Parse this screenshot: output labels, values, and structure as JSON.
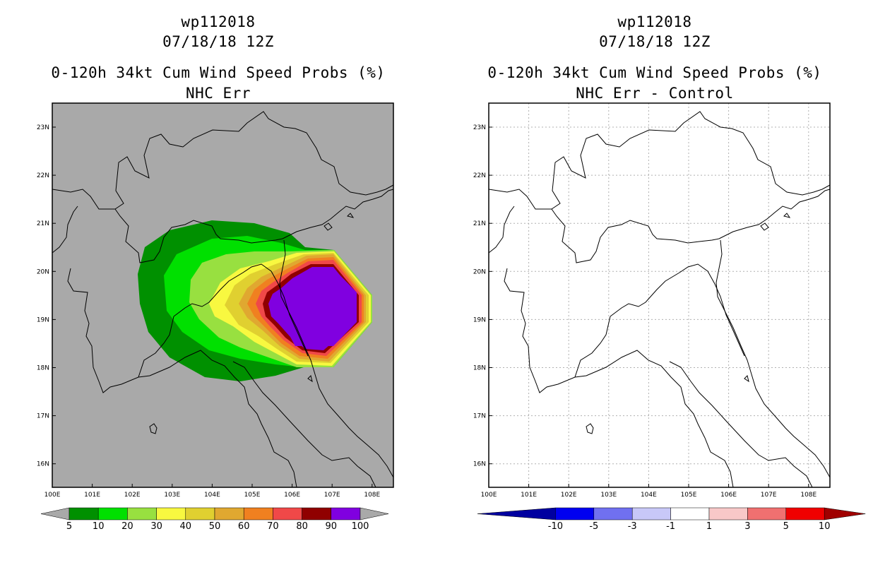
{
  "panels": [
    {
      "storm_id": "wp112018",
      "datetime": "07/18/18 12Z",
      "product": "0-120h 34kt Cum Wind Speed Probs (%)",
      "subtitle": "NHC Err",
      "background": "#a9a9a9",
      "colorbar": {
        "colors": [
          "#009000",
          "#00e000",
          "#98e040",
          "#f8f840",
          "#e0d030",
          "#e0a830",
          "#f08020",
          "#f04848",
          "#900000",
          "#8000e0"
        ],
        "labels": [
          "5",
          "10",
          "20",
          "30",
          "40",
          "50",
          "60",
          "70",
          "80",
          "90",
          "100"
        ]
      }
    },
    {
      "storm_id": "wp112018",
      "datetime": "07/18/18 12Z",
      "product": "0-120h 34kt Cum Wind Speed Probs (%)",
      "subtitle": "NHC Err - Control",
      "background": "#ffffff",
      "colorbar": {
        "colors": [
          "#0000a0",
          "#0000f0",
          "#7070f0",
          "#c8c8f8",
          "#ffffff",
          "#f8c8c8",
          "#f07070",
          "#f00000",
          "#a00000"
        ],
        "labels": [
          "-10",
          "-5",
          "-3",
          "-1",
          "1",
          "3",
          "5",
          "10"
        ]
      }
    }
  ],
  "map": {
    "lon_labels": [
      "100E",
      "101E",
      "102E",
      "103E",
      "104E",
      "105E",
      "106E",
      "107E",
      "108E"
    ],
    "lat_labels": [
      "16N",
      "17N",
      "18N",
      "19N",
      "20N",
      "21N",
      "22N",
      "23N"
    ]
  },
  "probability_field": {
    "units": "%",
    "levels": [
      5,
      10,
      20,
      30,
      40,
      50,
      60,
      70,
      80,
      90,
      100
    ],
    "max_region": "near 106.5E 19.3N, >= 90%"
  }
}
